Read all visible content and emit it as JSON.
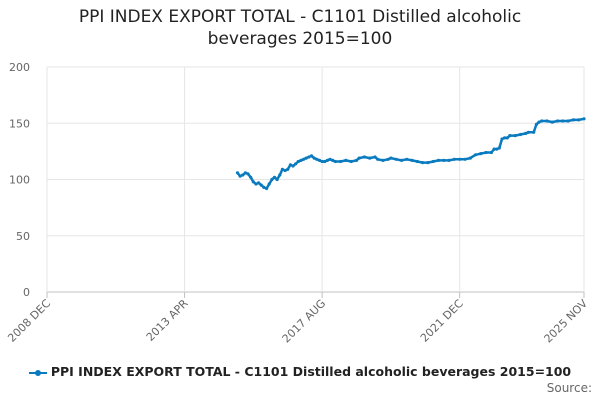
{
  "chart_data": {
    "type": "line",
    "title_lines": [
      "PPI INDEX EXPORT TOTAL - C1101 Distilled alcoholic",
      "beverages 2015=100"
    ],
    "xlabel": "",
    "ylabel": "",
    "ylim": [
      0,
      200
    ],
    "yticks": [
      0,
      50,
      100,
      150,
      200
    ],
    "xlim": [
      "2008-12",
      "2025-11"
    ],
    "xticks": [
      {
        "date": "2008-12",
        "label": "2008 DEC"
      },
      {
        "date": "2013-04",
        "label": "2013 APR"
      },
      {
        "date": "2017-08",
        "label": "2017 AUG"
      },
      {
        "date": "2021-12",
        "label": "2021 DEC"
      },
      {
        "date": "2025-11",
        "label": "2025 NOV"
      }
    ],
    "grid": true,
    "legend_position": "bottom",
    "series": [
      {
        "name": "PPI INDEX EXPORT TOTAL - C1101 Distilled alcoholic beverages 2015=100",
        "color": "#0b7bbf",
        "points": [
          [
            "2014-12",
            106
          ],
          [
            "2015-01",
            103
          ],
          [
            "2015-02",
            104
          ],
          [
            "2015-03",
            106
          ],
          [
            "2015-04",
            105
          ],
          [
            "2015-05",
            102
          ],
          [
            "2015-06",
            98
          ],
          [
            "2015-07",
            96
          ],
          [
            "2015-08",
            97
          ],
          [
            "2015-09",
            95
          ],
          [
            "2015-10",
            93
          ],
          [
            "2015-11",
            92
          ],
          [
            "2015-12",
            96
          ],
          [
            "2016-01",
            100
          ],
          [
            "2016-02",
            102
          ],
          [
            "2016-03",
            100
          ],
          [
            "2016-04",
            104
          ],
          [
            "2016-05",
            109
          ],
          [
            "2016-06",
            108
          ],
          [
            "2016-07",
            109
          ],
          [
            "2016-08",
            113
          ],
          [
            "2016-09",
            112
          ],
          [
            "2016-10",
            114
          ],
          [
            "2016-11",
            116
          ],
          [
            "2016-12",
            117
          ],
          [
            "2017-01",
            118
          ],
          [
            "2017-02",
            119
          ],
          [
            "2017-03",
            120
          ],
          [
            "2017-04",
            121
          ],
          [
            "2017-05",
            119
          ],
          [
            "2017-06",
            118
          ],
          [
            "2017-07",
            117
          ],
          [
            "2017-08",
            116
          ],
          [
            "2017-09",
            116
          ],
          [
            "2017-10",
            117
          ],
          [
            "2017-11",
            118
          ],
          [
            "2017-12",
            117
          ],
          [
            "2018-01",
            116
          ],
          [
            "2018-03",
            116
          ],
          [
            "2018-05",
            117
          ],
          [
            "2018-07",
            116
          ],
          [
            "2018-09",
            117
          ],
          [
            "2018-10",
            119
          ],
          [
            "2018-12",
            120
          ],
          [
            "2019-02",
            119
          ],
          [
            "2019-04",
            120
          ],
          [
            "2019-05",
            118
          ],
          [
            "2019-07",
            117
          ],
          [
            "2019-09",
            118
          ],
          [
            "2019-10",
            119
          ],
          [
            "2019-12",
            118
          ],
          [
            "2020-02",
            117
          ],
          [
            "2020-04",
            118
          ],
          [
            "2020-06",
            117
          ],
          [
            "2020-08",
            116
          ],
          [
            "2020-10",
            115
          ],
          [
            "2020-12",
            115
          ],
          [
            "2021-02",
            116
          ],
          [
            "2021-04",
            117
          ],
          [
            "2021-06",
            117
          ],
          [
            "2021-08",
            117
          ],
          [
            "2021-10",
            118
          ],
          [
            "2021-12",
            118
          ],
          [
            "2022-02",
            118
          ],
          [
            "2022-04",
            119
          ],
          [
            "2022-06",
            122
          ],
          [
            "2022-08",
            123
          ],
          [
            "2022-10",
            124
          ],
          [
            "2022-12",
            124
          ],
          [
            "2023-01",
            127
          ],
          [
            "2023-02",
            127
          ],
          [
            "2023-03",
            128
          ],
          [
            "2023-04",
            136
          ],
          [
            "2023-05",
            137
          ],
          [
            "2023-06",
            137
          ],
          [
            "2023-07",
            139
          ],
          [
            "2023-09",
            139
          ],
          [
            "2023-11",
            140
          ],
          [
            "2024-01",
            141
          ],
          [
            "2024-02",
            142
          ],
          [
            "2024-04",
            142
          ],
          [
            "2024-05",
            149
          ],
          [
            "2024-06",
            151
          ],
          [
            "2024-07",
            152
          ],
          [
            "2024-09",
            152
          ],
          [
            "2024-11",
            151
          ],
          [
            "2025-01",
            152
          ],
          [
            "2025-03",
            152
          ],
          [
            "2025-05",
            152
          ],
          [
            "2025-07",
            153
          ],
          [
            "2025-09",
            153
          ],
          [
            "2025-11",
            154
          ]
        ]
      }
    ]
  },
  "legend": {
    "label": "PPI INDEX EXPORT TOTAL - C1101 Distilled alcoholic beverages 2015=100"
  },
  "footer": {
    "source": "Source:"
  }
}
